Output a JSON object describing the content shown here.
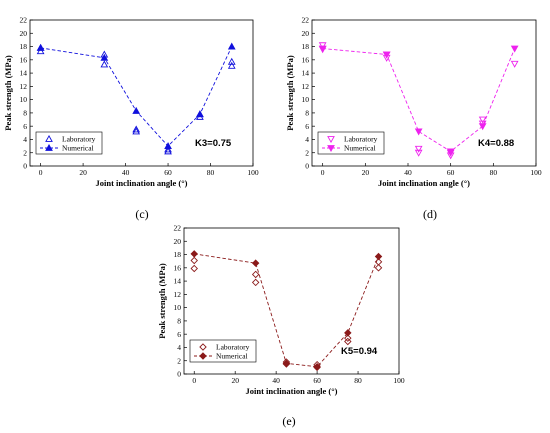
{
  "chart_data": [
    {
      "type": "scatter",
      "panel_label": "(c)",
      "annotation": "K3=0.75",
      "xlabel": "Joint  inclination  angle  (°)",
      "ylabel": "Peak  strength  (MPa)",
      "xlim": [
        -5,
        100
      ],
      "ylim": [
        0,
        22
      ],
      "xticks": [
        0,
        20,
        40,
        60,
        80,
        100
      ],
      "yticks": [
        0,
        2,
        4,
        6,
        8,
        10,
        12,
        14,
        16,
        18,
        20,
        22
      ],
      "color": "#1010dd",
      "series": [
        {
          "name": "Laboratory",
          "marker": "triangle-open",
          "points": [
            [
              0,
              17.3
            ],
            [
              0,
              17.8
            ],
            [
              30,
              15.3
            ],
            [
              30,
              16.8
            ],
            [
              45,
              5.2
            ],
            [
              45,
              5.5
            ],
            [
              60,
              2.2
            ],
            [
              60,
              2.5
            ],
            [
              75,
              7.4
            ],
            [
              75,
              7.8
            ],
            [
              90,
              15.1
            ],
            [
              90,
              15.7
            ]
          ]
        },
        {
          "name": "Numerical",
          "marker": "triangle-filled",
          "line": "dashed",
          "points": [
            [
              0,
              17.8
            ],
            [
              30,
              16.3
            ],
            [
              45,
              8.3
            ],
            [
              60,
              3.0
            ],
            [
              75,
              7.8
            ],
            [
              90,
              18.0
            ]
          ]
        }
      ]
    },
    {
      "type": "scatter",
      "panel_label": "(d)",
      "annotation": "K4=0.88",
      "xlabel": "Joint  inclination  angle  (°)",
      "ylabel": "Peak  strength  (MPa)",
      "xlim": [
        -5,
        100
      ],
      "ylim": [
        0,
        22
      ],
      "xticks": [
        0,
        20,
        40,
        60,
        80,
        100
      ],
      "yticks": [
        0,
        2,
        4,
        6,
        8,
        10,
        12,
        14,
        16,
        18,
        20,
        22
      ],
      "color": "#ee22ee",
      "series": [
        {
          "name": "Laboratory",
          "marker": "invtriangle-open",
          "points": [
            [
              0,
              17.6
            ],
            [
              0,
              18.2
            ],
            [
              30,
              16.3
            ],
            [
              30,
              16.8
            ],
            [
              45,
              2.0
            ],
            [
              45,
              2.6
            ],
            [
              60,
              1.6
            ],
            [
              60,
              2.0
            ],
            [
              75,
              6.4
            ],
            [
              75,
              7.0
            ],
            [
              90,
              15.4
            ]
          ]
        },
        {
          "name": "Numerical",
          "marker": "invtriangle-filled",
          "line": "dashed",
          "points": [
            [
              0,
              17.7
            ],
            [
              30,
              16.8
            ],
            [
              45,
              5.2
            ],
            [
              60,
              2.2
            ],
            [
              75,
              6.0
            ],
            [
              90,
              17.7
            ]
          ]
        }
      ]
    },
    {
      "type": "scatter",
      "panel_label": "(e)",
      "annotation": "K5=0.94",
      "xlabel": "Joint  inclination  angle  (°)",
      "ylabel": "Peak  strength  (MPa)",
      "xlim": [
        -5,
        100
      ],
      "ylim": [
        0,
        22
      ],
      "xticks": [
        0,
        20,
        40,
        60,
        80,
        100
      ],
      "yticks": [
        0,
        2,
        4,
        6,
        8,
        10,
        12,
        14,
        16,
        18,
        20,
        22
      ],
      "color": "#8b1a1a",
      "series": [
        {
          "name": "Laboratory",
          "marker": "diamond-open",
          "points": [
            [
              0,
              15.9
            ],
            [
              0,
              17.1
            ],
            [
              30,
              13.8
            ],
            [
              30,
              15.0
            ],
            [
              45,
              1.5
            ],
            [
              45,
              1.8
            ],
            [
              60,
              1.0
            ],
            [
              60,
              1.4
            ],
            [
              75,
              4.9
            ],
            [
              75,
              5.4
            ],
            [
              90,
              16.0
            ],
            [
              90,
              16.9
            ]
          ]
        },
        {
          "name": "Numerical",
          "marker": "diamond-filled",
          "line": "dashed",
          "points": [
            [
              0,
              18.1
            ],
            [
              30,
              16.7
            ],
            [
              45,
              1.6
            ],
            [
              60,
              1.1
            ],
            [
              75,
              6.2
            ],
            [
              90,
              17.7
            ]
          ]
        }
      ]
    }
  ]
}
